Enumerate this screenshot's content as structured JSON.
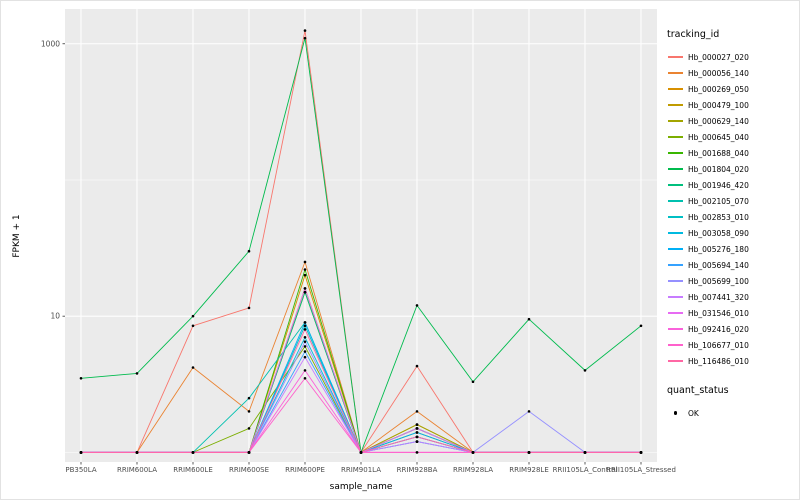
{
  "figure": {
    "background": "#FFFFFF",
    "panel_background": "#EBEBEB",
    "grid_color": "#FFFFFF",
    "tick_label_color": "#4D4D4D",
    "point_color": "#000000"
  },
  "chart_data": {
    "type": "line",
    "title": "",
    "xlabel": "sample_name",
    "ylabel": "FPKM + 1",
    "y_scale": "log10",
    "y_ticks": [
      10,
      1000
    ],
    "y_minor": [
      1,
      100
    ],
    "ylim": [
      0.85,
      1800
    ],
    "grid": true,
    "legend_position": "right",
    "categories": [
      "PB350LA",
      "RRIM600LA",
      "RRIM600LE",
      "RRIM600SE",
      "RRIM600PE",
      "RRIM901LA",
      "RRIM928BA",
      "RRIM928LA",
      "RRIM928LE",
      "RRII105LA_Control",
      "RRII105LA_Stressed"
    ],
    "series": [
      {
        "name": "Hb_000027_020",
        "color": "#F8766D",
        "values": [
          1,
          1,
          8.5,
          11.5,
          1250,
          1,
          4.3,
          1,
          1,
          1,
          1
        ]
      },
      {
        "name": "Hb_000056_140",
        "color": "#EA8331",
        "values": [
          1,
          1,
          4.2,
          2,
          25,
          1,
          2,
          1,
          1,
          1,
          1
        ]
      },
      {
        "name": "Hb_000269_050",
        "color": "#D89000",
        "values": [
          1,
          1,
          1,
          1,
          20,
          1,
          1.6,
          1,
          1,
          1,
          1
        ]
      },
      {
        "name": "Hb_000479_100",
        "color": "#C09B00",
        "values": [
          1,
          1,
          1,
          1,
          16,
          1,
          1.5,
          1,
          1,
          1,
          1
        ]
      },
      {
        "name": "Hb_000629_140",
        "color": "#A3A500",
        "values": [
          1,
          1,
          1,
          1,
          15,
          1,
          1.6,
          1,
          1,
          1,
          1
        ]
      },
      {
        "name": "Hb_000645_040",
        "color": "#7CAE00",
        "values": [
          1,
          1,
          1,
          1.5,
          6,
          1,
          1.4,
          1,
          1,
          1,
          1
        ]
      },
      {
        "name": "Hb_001688_040",
        "color": "#39B600",
        "values": [
          1,
          1,
          1,
          1,
          22,
          1,
          1.5,
          1,
          1,
          1,
          1
        ]
      },
      {
        "name": "Hb_001804_020",
        "color": "#00BB4E",
        "values": [
          3.5,
          3.8,
          10,
          30,
          1100,
          1,
          12,
          3.3,
          9.5,
          4,
          8.5
        ]
      },
      {
        "name": "Hb_001946_420",
        "color": "#00BF7D",
        "values": [
          1,
          1,
          1,
          1,
          15,
          1,
          1.3,
          1,
          1,
          1,
          1
        ]
      },
      {
        "name": "Hb_002105_070",
        "color": "#00C0AF",
        "values": [
          1,
          1,
          1,
          2.5,
          9,
          1,
          1.5,
          1,
          1,
          1,
          1
        ]
      },
      {
        "name": "Hb_002853_010",
        "color": "#00BFC4",
        "values": [
          1,
          1,
          1,
          1,
          8.5,
          1,
          1.3,
          1,
          1,
          1,
          1
        ]
      },
      {
        "name": "Hb_003058_090",
        "color": "#00BAE0",
        "values": [
          1,
          1,
          1,
          1,
          7,
          1,
          1.2,
          1,
          1,
          1,
          1
        ]
      },
      {
        "name": "Hb_005276_180",
        "color": "#00B0F6",
        "values": [
          1,
          1,
          1,
          1,
          9,
          1,
          1.4,
          1,
          1,
          1,
          1
        ]
      },
      {
        "name": "Hb_005694_140",
        "color": "#35A2FF",
        "values": [
          1,
          1,
          1,
          1,
          5.5,
          1,
          1.2,
          1,
          1,
          1,
          1
        ]
      },
      {
        "name": "Hb_005699_100",
        "color": "#9590FF",
        "values": [
          1,
          1,
          1,
          1,
          6.5,
          1,
          1.3,
          1,
          2,
          1,
          1
        ]
      },
      {
        "name": "Hb_007441_320",
        "color": "#C77CFF",
        "values": [
          1,
          1,
          1,
          1,
          5,
          1,
          1.2,
          1,
          1,
          1,
          1
        ]
      },
      {
        "name": "Hb_031546_010",
        "color": "#E76BF3",
        "values": [
          1,
          1,
          1,
          1,
          16,
          1,
          1.5,
          1,
          1,
          1,
          1
        ]
      },
      {
        "name": "Hb_092416_020",
        "color": "#FA62DB",
        "values": [
          1,
          1,
          1,
          1,
          4,
          1,
          1,
          1,
          1,
          1,
          1
        ]
      },
      {
        "name": "Hb_106677_010",
        "color": "#FF61CC",
        "values": [
          1,
          1,
          1,
          1,
          3.5,
          1,
          1,
          1,
          1,
          1,
          1
        ]
      },
      {
        "name": "Hb_116486_010",
        "color": "#FF67A4",
        "values": [
          1,
          1,
          1,
          1,
          8,
          1,
          1.3,
          1,
          1,
          1,
          1
        ]
      }
    ],
    "legend": {
      "color_title": "tracking_id",
      "shape_title": "quant_status",
      "shape_items": [
        {
          "label": "OK"
        }
      ]
    }
  }
}
